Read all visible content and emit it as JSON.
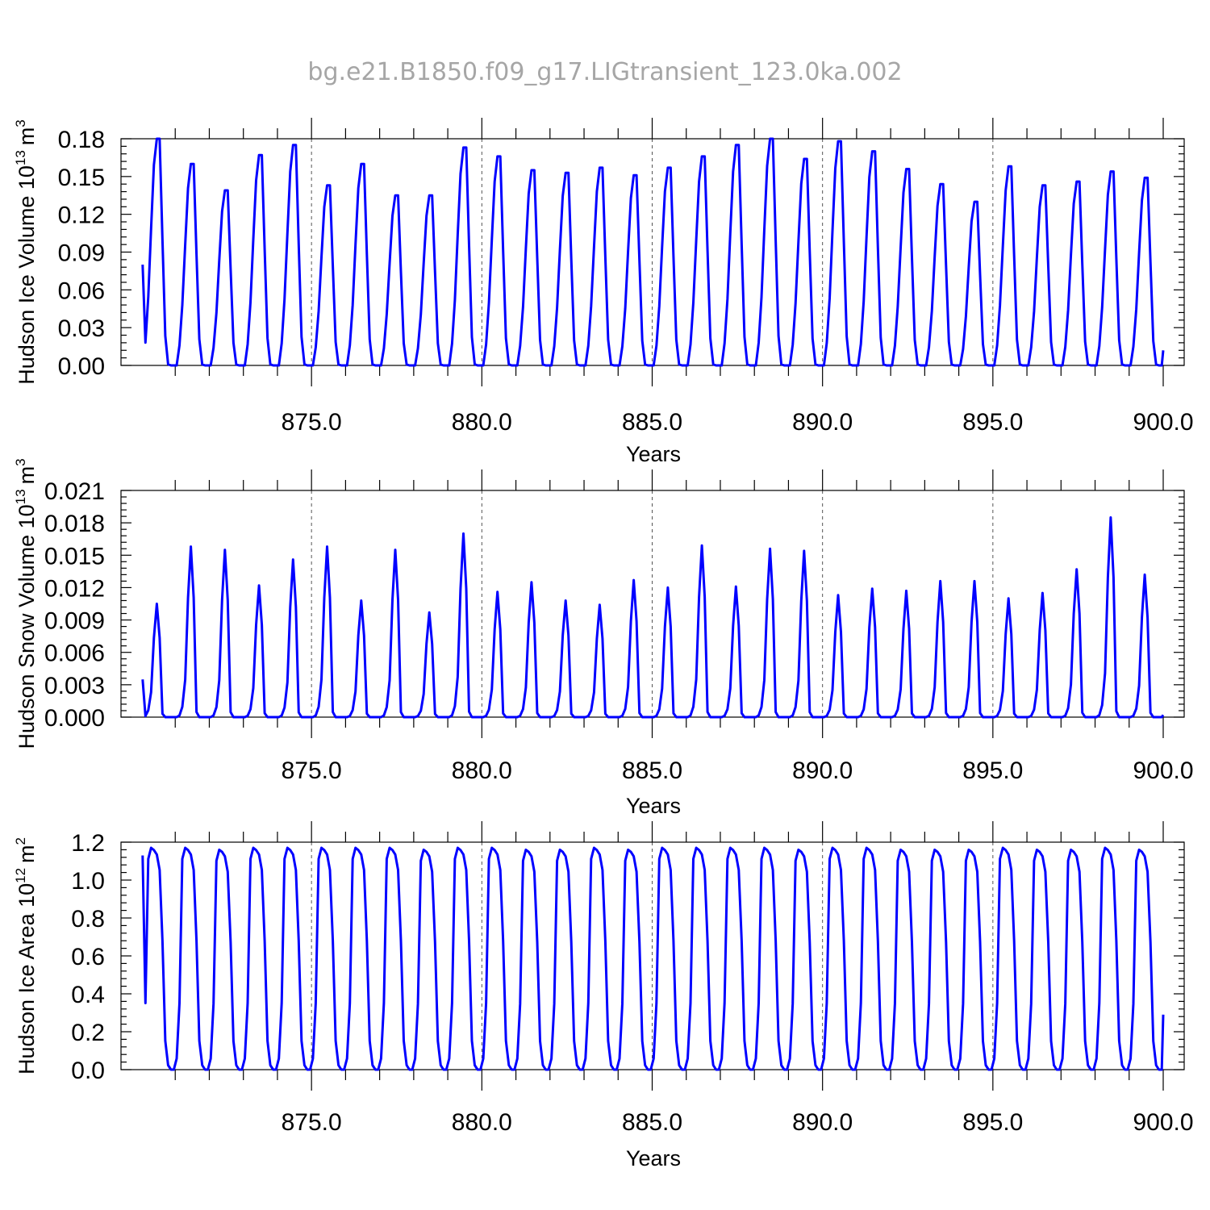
{
  "title": "bg.e21.B1850.f09_g17.LIGtransient_123.0ka.002",
  "chart_data": [
    {
      "type": "line",
      "title": "",
      "xlabel": "Years",
      "ylabel": "Hudson Ice Volume 10",
      "ylabel_exp": "13",
      "ylabel_unit": "m",
      "ylabel_unit_exp": "3",
      "xlim": [
        870.0,
        900.0
      ],
      "ylim": [
        0.0,
        0.18
      ],
      "xticks": [
        "875.0",
        "880.0",
        "885.0",
        "890.0",
        "895.0",
        "900.0"
      ],
      "yticks": [
        "0.00",
        "0.03",
        "0.06",
        "0.09",
        "0.12",
        "0.15",
        "0.18"
      ],
      "grid": "dashed vertical at major x ticks",
      "color": "#0000ff",
      "start": 0.08,
      "peaks": [
        0.181,
        0.16,
        0.139,
        0.167,
        0.175,
        0.143,
        0.16,
        0.135,
        0.135,
        0.173,
        0.166,
        0.155,
        0.153,
        0.157,
        0.151,
        0.157,
        0.166,
        0.175,
        0.18,
        0.164,
        0.178,
        0.17,
        0.156,
        0.144,
        0.13,
        0.158,
        0.143,
        0.146,
        0.154,
        0.149
      ],
      "end": 0.012
    },
    {
      "type": "line",
      "title": "",
      "xlabel": "Years",
      "ylabel": "Hudson Snow Volume 10",
      "ylabel_exp": "13",
      "ylabel_unit": "m",
      "ylabel_unit_exp": "3",
      "xlim": [
        870.0,
        900.0
      ],
      "ylim": [
        0.0,
        0.021
      ],
      "xticks": [
        "875.0",
        "880.0",
        "885.0",
        "890.0",
        "895.0",
        "900.0"
      ],
      "yticks": [
        "0.000",
        "0.003",
        "0.006",
        "0.009",
        "0.012",
        "0.015",
        "0.018",
        "0.021"
      ],
      "grid": "dashed vertical at major x ticks",
      "color": "#0000ff",
      "start": 0.0035,
      "peaks": [
        0.0105,
        0.0158,
        0.0155,
        0.0122,
        0.0146,
        0.0158,
        0.0108,
        0.0155,
        0.0097,
        0.017,
        0.0116,
        0.0125,
        0.0108,
        0.0104,
        0.0127,
        0.012,
        0.0159,
        0.0121,
        0.0156,
        0.0154,
        0.0113,
        0.0119,
        0.0117,
        0.0126,
        0.0126,
        0.011,
        0.0115,
        0.0137,
        0.0185,
        0.0132
      ],
      "end": 0.0002
    },
    {
      "type": "line",
      "title": "",
      "xlabel": "Years",
      "ylabel": "Hudson Ice Area 10",
      "ylabel_exp": "12",
      "ylabel_unit": "m",
      "ylabel_unit_exp": "2",
      "xlim": [
        870.0,
        900.0
      ],
      "ylim": [
        0.0,
        1.2
      ],
      "xticks": [
        "875.0",
        "880.0",
        "885.0",
        "890.0",
        "895.0",
        "900.0"
      ],
      "yticks": [
        "0.0",
        "0.2",
        "0.4",
        "0.6",
        "0.8",
        "1.0",
        "1.2"
      ],
      "grid": "dashed vertical at major x ticks",
      "color": "#0000ff",
      "start": 1.13,
      "peaks": [
        1.17,
        1.17,
        1.16,
        1.17,
        1.17,
        1.17,
        1.17,
        1.17,
        1.16,
        1.17,
        1.17,
        1.16,
        1.16,
        1.17,
        1.16,
        1.17,
        1.17,
        1.17,
        1.17,
        1.16,
        1.17,
        1.17,
        1.16,
        1.16,
        1.16,
        1.17,
        1.16,
        1.16,
        1.17,
        1.16
      ],
      "end": 0.29
    }
  ]
}
